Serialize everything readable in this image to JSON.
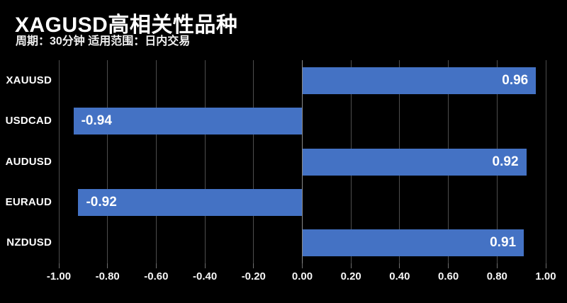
{
  "header": {
    "title": "XAGUSD高相关性品种",
    "subtitle": "周期：30分钟 适用范围：日内交易"
  },
  "colors": {
    "background": "#000000",
    "bar": "#4472C4",
    "text": "#ffffff",
    "gridline": "#4d4d4d",
    "zero_line": "#8a8a8a"
  },
  "chart_data": {
    "type": "bar",
    "orientation": "horizontal",
    "title": "XAGUSD高相关性品种",
    "subtitle": "周期：30分钟 适用范围：日内交易",
    "categories": [
      "XAUUSD",
      "USDCAD",
      "AUDUSD",
      "EURAUD",
      "NZDUSD"
    ],
    "values": [
      0.96,
      -0.94,
      0.92,
      -0.92,
      0.91
    ],
    "data_labels": [
      "0.96",
      "-0.94",
      "0.92",
      "-0.92",
      "0.91"
    ],
    "xlabel": "",
    "ylabel": "",
    "xlim": [
      -1.0,
      1.0
    ],
    "xticks": [
      -1.0,
      -0.8,
      -0.6,
      -0.4,
      -0.2,
      0.0,
      0.2,
      0.4,
      0.6,
      0.8,
      1.0
    ],
    "xtick_labels": [
      "-1.00",
      "-0.80",
      "-0.60",
      "-0.40",
      "-0.20",
      "0.00",
      "0.20",
      "0.40",
      "0.60",
      "0.80",
      "1.00"
    ],
    "grid": true,
    "legend": false
  }
}
